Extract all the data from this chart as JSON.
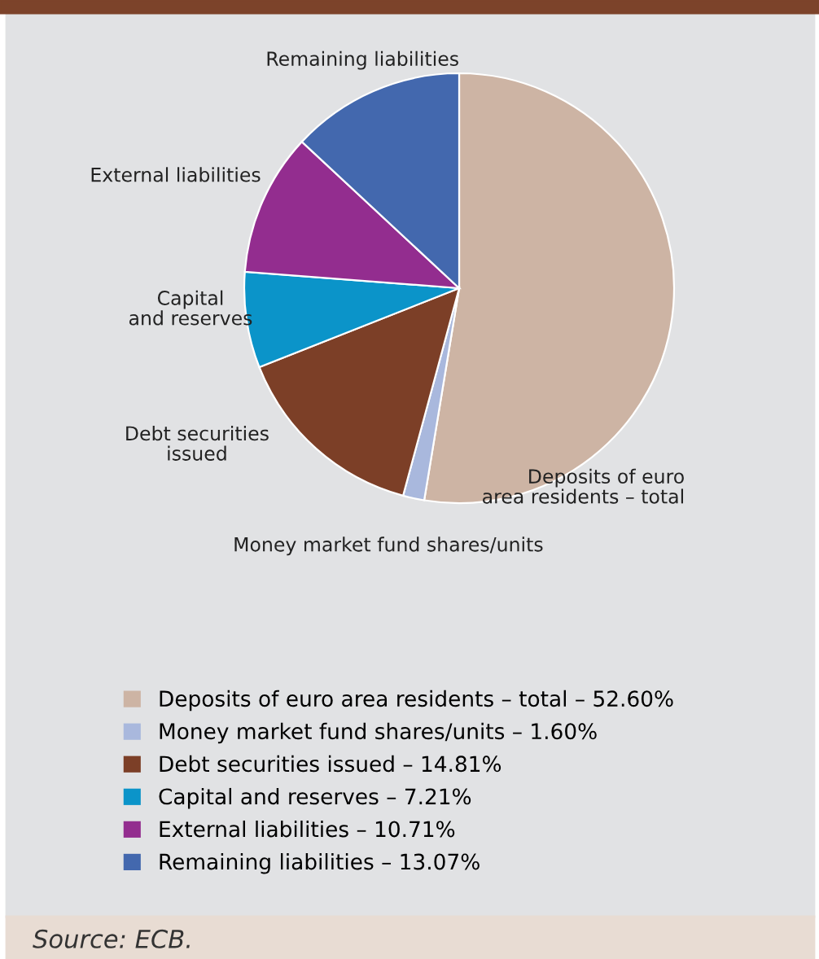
{
  "chart_data": {
    "type": "pie",
    "categories": [
      "Deposits of euro area residents – total – 52.60%",
      "Money market fund shares/units – 1.60%",
      "Debt securities issued – 14.81%",
      "Capital and reserves – 7.21%",
      "External liabilities – 10.71%",
      "Remaining liabilities – 13.07%"
    ],
    "values": [
      52.6,
      1.6,
      14.81,
      7.21,
      10.71,
      13.07
    ],
    "colors": [
      "#cdb4a4",
      "#a9b8dd",
      "#7c3f27",
      "#0b94c9",
      "#932d8f",
      "#4368ae"
    ],
    "annotations": [
      "Deposits of euro\narea residents – total",
      "Money market fund shares/units",
      "Debt securities\nissued",
      "Capital\nand reserves",
      "External liabilities",
      "Remaining liabilities",
      "Source: ECB."
    ],
    "legend": "bottom"
  }
}
